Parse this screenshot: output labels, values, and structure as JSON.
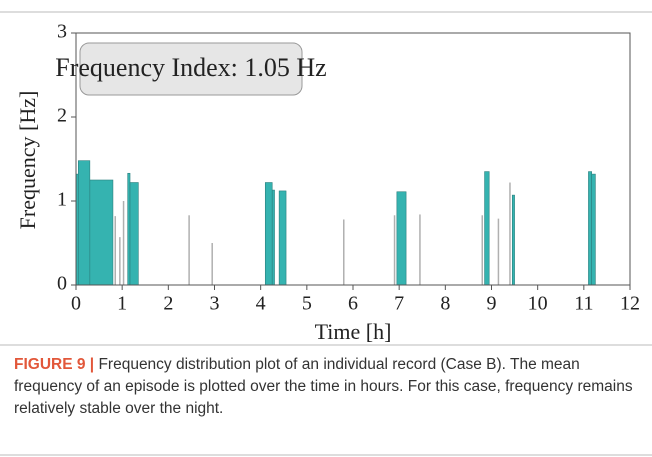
{
  "chart_data": {
    "type": "interval",
    "xlabel": "Time [h]",
    "ylabel": "Frequency [Hz]",
    "annotation": "Frequency Index: 1.05 Hz",
    "xlim": [
      0,
      12
    ],
    "xticks": [
      0,
      1,
      2,
      3,
      4,
      5,
      6,
      7,
      8,
      9,
      10,
      11,
      12
    ],
    "ylim": [
      0,
      3
    ],
    "yticks": [
      0,
      1,
      2,
      3
    ],
    "color": "#35b3b0",
    "x0": [
      0,
      0.05,
      0.3,
      1.12,
      1.17,
      4.1,
      4.25,
      4.4,
      6.95,
      8.85,
      9.45,
      11.1,
      11.17
    ],
    "x1": [
      0.05,
      0.3,
      0.8,
      1.17,
      1.35,
      4.25,
      4.3,
      4.55,
      7.15,
      8.95,
      9.5,
      11.17,
      11.25
    ],
    "values": [
      1.32,
      1.48,
      1.25,
      1.33,
      1.22,
      1.22,
      1.13,
      1.12,
      1.11,
      1.35,
      1.07,
      1.35,
      1.32
    ],
    "thin_color": "#b0b0b0",
    "thin_x": [
      0.85,
      0.95,
      1.03,
      2.45,
      2.95,
      5.8,
      6.9,
      7.45,
      8.8,
      9.15,
      9.4
    ],
    "thin_values": [
      0.82,
      0.57,
      1.0,
      0.83,
      0.5,
      0.78,
      0.83,
      0.84,
      0.83,
      0.79,
      1.22
    ]
  },
  "caption": {
    "label": "FIGURE 9 |",
    "text": " Frequency distribution plot of an individual record (Case B). The mean frequency of an episode is plotted over the time in hours. For this case, frequency remains relatively stable over the night."
  }
}
